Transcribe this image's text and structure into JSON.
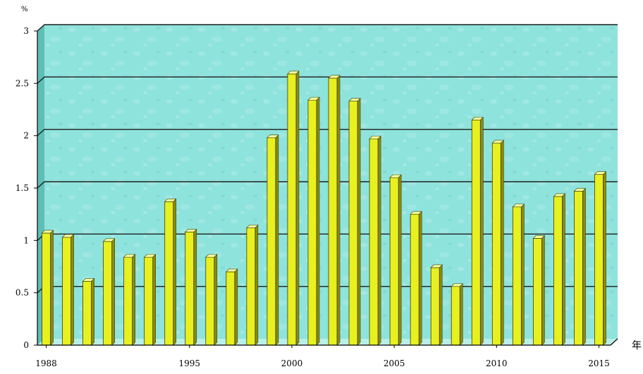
{
  "chart_data": {
    "type": "bar",
    "y_unit": "%",
    "x_unit": "年",
    "categories": [
      "1988",
      "1989",
      "1990",
      "1991",
      "1992",
      "1993",
      "1994",
      "1995",
      "1996",
      "1997",
      "1998",
      "1999",
      "2000",
      "2001",
      "2002",
      "2003",
      "2004",
      "2005",
      "2006",
      "2007",
      "2008",
      "2009",
      "2010",
      "2011",
      "2012",
      "2013",
      "2014",
      "2015"
    ],
    "x_tick_labels": [
      {
        "category": "1988",
        "label": "1988"
      },
      {
        "category": "1995",
        "label": "1995"
      },
      {
        "category": "2000",
        "label": "2000"
      },
      {
        "category": "2005",
        "label": "2005"
      },
      {
        "category": "2010",
        "label": "2010"
      },
      {
        "category": "2015",
        "label": "2015"
      }
    ],
    "y_ticks": [
      "0",
      "0.5",
      "1",
      "1.5",
      "2",
      "2.5",
      "3"
    ],
    "ylim": [
      0,
      3
    ],
    "grid": true,
    "series": [
      {
        "values": [
          1.07,
          1.03,
          0.61,
          0.99,
          0.84,
          0.84,
          1.37,
          1.08,
          0.84,
          0.7,
          1.12,
          1.98,
          2.59,
          2.34,
          2.55,
          2.33,
          1.97,
          1.6,
          1.25,
          0.74,
          0.56,
          2.15,
          1.93,
          1.32,
          1.02,
          1.42,
          1.47,
          1.63
        ]
      }
    ],
    "colors": {
      "plot_bg": "#8ee3dc",
      "plot_side_wall": "#5dbfb5",
      "plot_floor": "#b9efe9",
      "bar_front": "#e8f020",
      "bar_top": "#f9fca0",
      "bar_side": "#8a8c10",
      "bar_outline": "#3d3d00",
      "gridline": "#1f1f1f"
    }
  }
}
